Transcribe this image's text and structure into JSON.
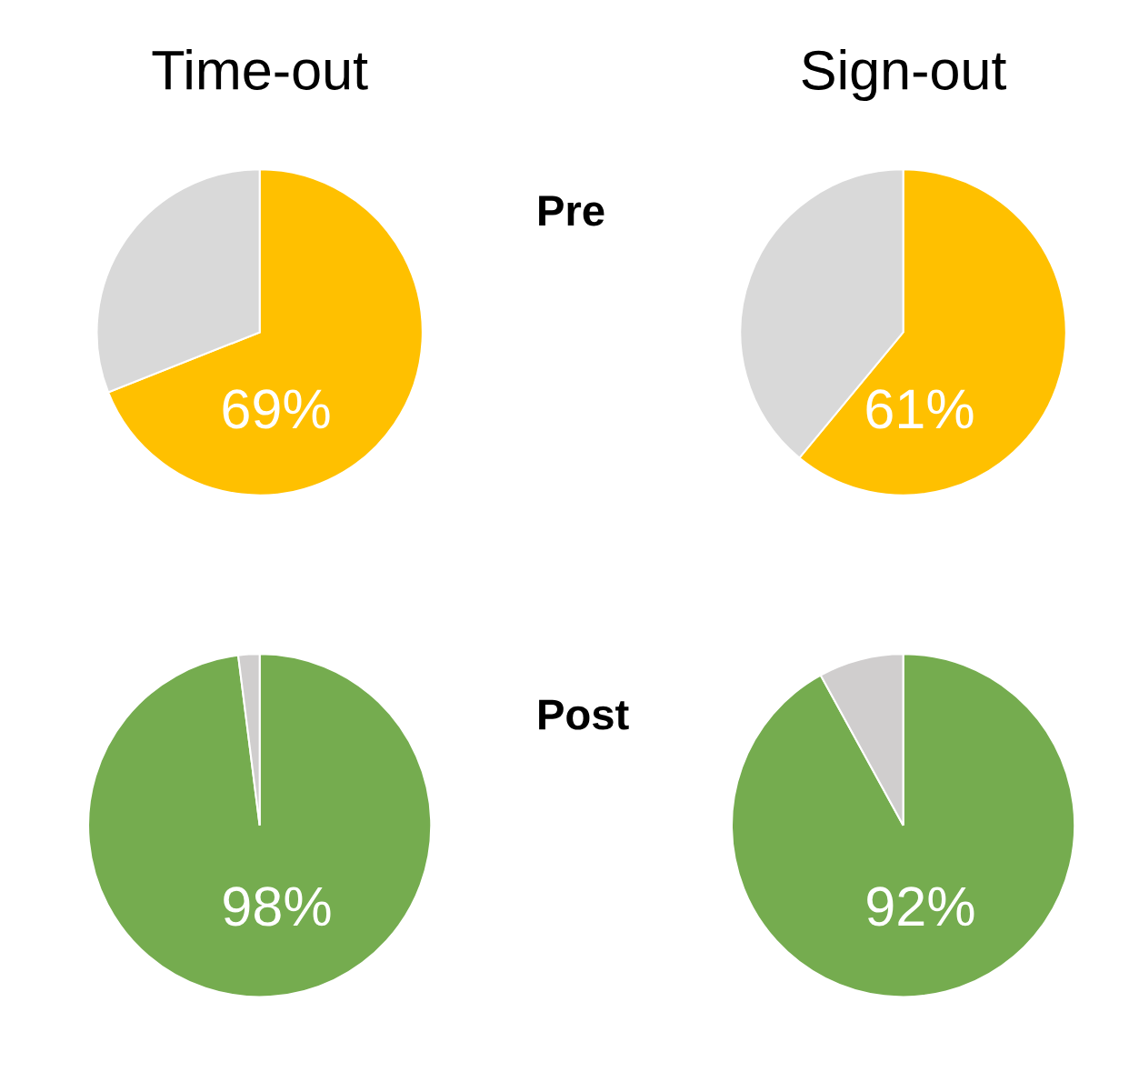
{
  "chart_data": [
    {
      "type": "pie",
      "title": "Time-out",
      "annotations": [
        "Pre"
      ],
      "categories": [
        null,
        null
      ],
      "values": [
        69,
        31
      ],
      "colors": [
        "#ffc000",
        "#d9d9d9"
      ],
      "value_labels": [
        "69%",
        null
      ]
    },
    {
      "type": "pie",
      "title": "Sign-out",
      "categories": [
        null,
        null
      ],
      "values": [
        61,
        39
      ],
      "colors": [
        "#ffc000",
        "#d9d9d9"
      ],
      "value_labels": [
        "61%",
        null
      ]
    },
    {
      "type": "pie",
      "annotations": [
        "Post"
      ],
      "categories": [
        null,
        null
      ],
      "values": [
        98,
        2
      ],
      "colors": [
        "#75ac4f",
        "#d0cece"
      ],
      "value_labels": [
        "98%",
        null
      ]
    },
    {
      "type": "pie",
      "categories": [
        null,
        null
      ],
      "values": [
        92,
        8
      ],
      "colors": [
        "#75ac4f",
        "#d0cece"
      ],
      "value_labels": [
        "92%",
        null
      ]
    }
  ]
}
